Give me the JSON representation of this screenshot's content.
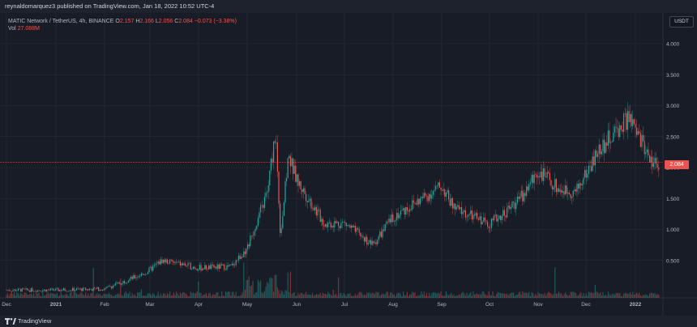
{
  "header": {
    "published": "reynaldomarquez3 published on TradingView.com, Jan 18, 2022 10:52 UTC-4"
  },
  "legend": {
    "symbol": "MATIC Network / TetherUS, 4h, BINANCE",
    "o_label": "O",
    "o": "2.157",
    "h_label": "H",
    "h": "2.166",
    "l_label": "L",
    "l": "2.056",
    "c_label": "C",
    "c": "2.084",
    "change": "−0.073 (−3.38%)",
    "vol_label": "Vol",
    "vol": "27.088M"
  },
  "currency_label": "USDT",
  "last_price_label": "2.084",
  "footer": {
    "brand": "TradingView"
  },
  "colors": {
    "up": "#26a69a",
    "down": "#ef5350",
    "background": "#181c27",
    "grid": "#2a2e39"
  },
  "chart_data": {
    "type": "candlestick",
    "y_axis_ticks": [
      "0.500",
      "1.000",
      "1.500",
      "2.000",
      "2.500",
      "3.000",
      "3.500",
      "4.000"
    ],
    "ylim": [
      0,
      4.4
    ],
    "x_axis_ticks": [
      "Dec",
      "2021",
      "Feb",
      "Mar",
      "Apr",
      "May",
      "Jun",
      "Jul",
      "Aug",
      "Sep",
      "Oct",
      "Nov",
      "Dec",
      "2022"
    ],
    "x_axis_ticks_bold": [
      "2021",
      "2022"
    ],
    "price_path": {
      "x": [
        "Dec",
        "Jan",
        "Feb",
        "Mar 10",
        "Mar 12",
        "Apr",
        "Apr 25",
        "May 1",
        "May 10",
        "May 18",
        "May 19",
        "May 20",
        "May 24",
        "Jun",
        "Jun 20",
        "Jul",
        "Jul 20",
        "Aug",
        "Aug 15",
        "Sep 1",
        "Sep 10",
        "Sep 20",
        "Oct",
        "Oct 20",
        "Nov 1",
        "Nov 10",
        "Nov 25",
        "Dec 1",
        "Dec 15",
        "Dec 27",
        "Jan 5",
        "Jan 12",
        "Jan 18"
      ],
      "close": [
        0.02,
        0.02,
        0.04,
        0.3,
        0.5,
        0.38,
        0.4,
        0.7,
        1.6,
        2.6,
        0.9,
        1.4,
        2.2,
        1.8,
        1.1,
        1.1,
        0.75,
        1.2,
        1.45,
        1.7,
        1.35,
        1.25,
        1.1,
        1.3,
        1.55,
        1.95,
        1.65,
        1.6,
        2.3,
        2.8,
        2.45,
        2.1,
        2.08
      ]
    },
    "last_close": 2.084
  }
}
